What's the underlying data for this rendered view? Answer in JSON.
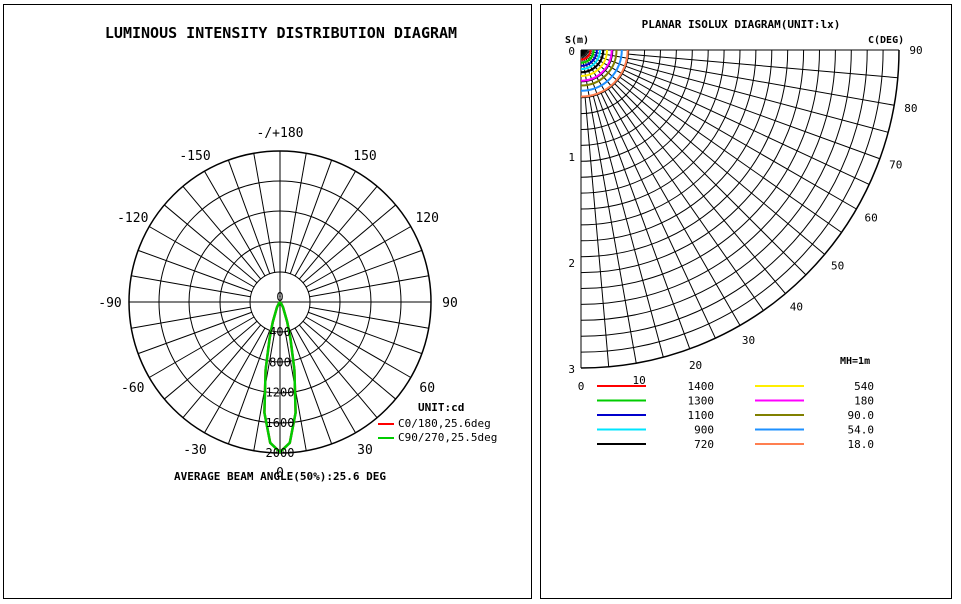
{
  "chart_data": [
    {
      "type": "polar",
      "title": "LUMINOUS INTENSITY DISTRIBUTION DIAGRAM",
      "unit_label": "UNIT:cd",
      "angle_labels": [
        "-/+180",
        "150",
        "120",
        "90",
        "60",
        "30",
        "0",
        "-30",
        "-60",
        "-90",
        "-120",
        "-150"
      ],
      "radial_ticks": [
        0,
        400,
        800,
        1200,
        1600,
        2000
      ],
      "rmax": 2000,
      "series": [
        {
          "name": "C0/180,25.6deg",
          "color": "#ff0000",
          "angles": [
            -40,
            -30,
            -20,
            -16,
            -12,
            -8,
            -4,
            0,
            4,
            8,
            12,
            16,
            20,
            30,
            40
          ],
          "values": [
            20,
            80,
            280,
            500,
            920,
            1480,
            1870,
            1990,
            1870,
            1480,
            920,
            500,
            280,
            80,
            20
          ]
        },
        {
          "name": "C90/270,25.5deg",
          "color": "#00cc00",
          "angles": [
            -40,
            -30,
            -20,
            -16,
            -12,
            -8,
            -4,
            0,
            4,
            8,
            12,
            16,
            20,
            30,
            40
          ],
          "values": [
            20,
            80,
            280,
            500,
            920,
            1480,
            1870,
            1990,
            1870,
            1480,
            920,
            500,
            280,
            80,
            20
          ]
        }
      ],
      "footer": "AVERAGE BEAM ANGLE(50%):25.6 DEG"
    },
    {
      "type": "isolux",
      "title": "PLANAR ISOLUX DIAGRAM(UNIT:lx)",
      "y_axis_label": "S(m)",
      "c_axis_label": "C(DEG)",
      "radial_ticks": [
        0,
        1,
        2,
        3
      ],
      "angle_ticks": [
        0,
        10,
        20,
        30,
        40,
        50,
        60,
        70,
        80,
        90
      ],
      "mh_label": "MH=1m",
      "levels": [
        {
          "value": "1400",
          "color": "#ff0000",
          "radius": 0.09
        },
        {
          "value": "1300",
          "color": "#00cc00",
          "radius": 0.12
        },
        {
          "value": "1100",
          "color": "#0000cc",
          "radius": 0.15
        },
        {
          "value": "900",
          "color": "#00e5ff",
          "radius": 0.18
        },
        {
          "value": "720",
          "color": "#000000",
          "radius": 0.21
        },
        {
          "value": "540",
          "color": "#ffee00",
          "radius": 0.245
        },
        {
          "value": "180",
          "color": "#ff00ff",
          "radius": 0.29
        },
        {
          "value": "90.0",
          "color": "#808000",
          "radius": 0.335
        },
        {
          "value": "54.0",
          "color": "#1e90ff",
          "radius": 0.385
        },
        {
          "value": "18.0",
          "color": "#ff7f50",
          "radius": 0.44
        }
      ]
    }
  ]
}
